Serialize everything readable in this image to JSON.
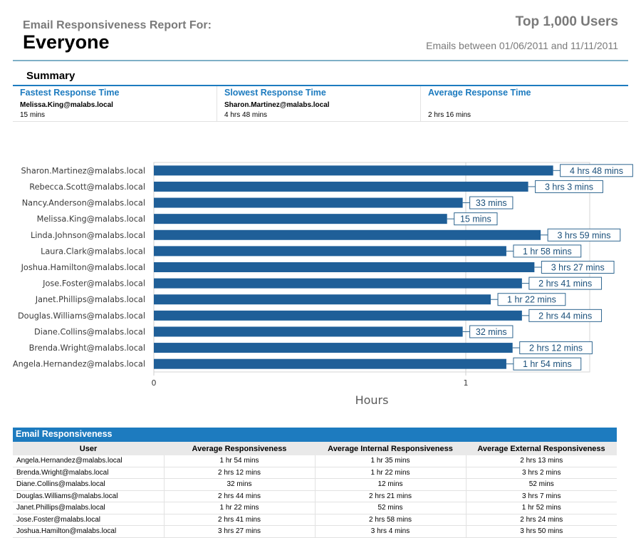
{
  "header": {
    "report_label": "Email Responsiveness Report For:",
    "report_subject": "Everyone",
    "top_users": "Top 1,000 Users",
    "date_range": "Emails between 01/06/2011 and 11/11/2011"
  },
  "summary": {
    "title": "Summary",
    "fastest": {
      "label": "Fastest Response Time",
      "email": "Melissa.King@malabs.local",
      "value": "15 mins"
    },
    "slowest": {
      "label": "Slowest Response Time",
      "email": "Sharon.Martinez@malabs.local",
      "value": "4 hrs 48 mins"
    },
    "average": {
      "label": "Average Response Time",
      "email": "",
      "value": "2 hrs 16 mins"
    }
  },
  "chart_data": {
    "type": "bar",
    "orientation": "horizontal",
    "xlabel": "Hours",
    "xticks": [
      "0",
      "1"
    ],
    "grid": true,
    "colors": {
      "bar": "#1f5f98",
      "label_border": "#2f6690"
    },
    "categories": [
      "Sharon.Martinez@malabs.local",
      "Rebecca.Scott@malabs.local",
      "Nancy.Anderson@malabs.local",
      "Melissa.King@malabs.local",
      "Linda.Johnson@malabs.local",
      "Laura.Clark@malabs.local",
      "Joshua.Hamilton@malabs.local",
      "Jose.Foster@malabs.local",
      "Janet.Phillips@malabs.local",
      "Douglas.Williams@malabs.local",
      "Diane.Collins@malabs.local",
      "Brenda.Wright@malabs.local",
      "Angela.Hernandez@malabs.local"
    ],
    "values": [
      1.28,
      1.2,
      0.99,
      0.94,
      1.24,
      1.13,
      1.22,
      1.18,
      1.08,
      1.18,
      0.99,
      1.15,
      1.13
    ],
    "labels": [
      "4 hrs 48 mins",
      "3 hrs 3 mins",
      "33 mins",
      "15 mins",
      "3 hrs 59 mins",
      "1 hr 58 mins",
      "3 hrs 27 mins",
      "2 hrs 41 mins",
      "1 hr 22 mins",
      "2 hrs 44 mins",
      "32 mins",
      "2 hrs 12 mins",
      "1 hr 54 mins"
    ],
    "xlim": [
      0,
      1.4
    ]
  },
  "table": {
    "title": "Email Responsiveness",
    "columns": [
      "User",
      "Average Responsiveness",
      "Average Internal Responsiveness",
      "Average External Responsiveness"
    ],
    "rows": [
      [
        "Angela.Hernandez@malabs.local",
        "1 hr 54 mins",
        "1 hr 35 mins",
        "2 hrs 13 mins"
      ],
      [
        "Brenda.Wright@malabs.local",
        "2 hrs 12 mins",
        "1 hr 22 mins",
        "3 hrs 2 mins"
      ],
      [
        "Diane.Collins@malabs.local",
        "32 mins",
        "12 mins",
        "52 mins"
      ],
      [
        "Douglas.Williams@malabs.local",
        "2 hrs 44 mins",
        "2 hrs 21 mins",
        "3 hrs 7 mins"
      ],
      [
        "Janet.Phillips@malabs.local",
        "1 hr 22 mins",
        "52 mins",
        "1 hr 52 mins"
      ],
      [
        "Jose.Foster@malabs.local",
        "2 hrs 41 mins",
        "2 hrs 58 mins",
        "2 hrs 24 mins"
      ],
      [
        "Joshua.Hamilton@malabs.local",
        "3 hrs 27 mins",
        "3 hrs 4 mins",
        "3 hrs 50 mins"
      ]
    ]
  }
}
